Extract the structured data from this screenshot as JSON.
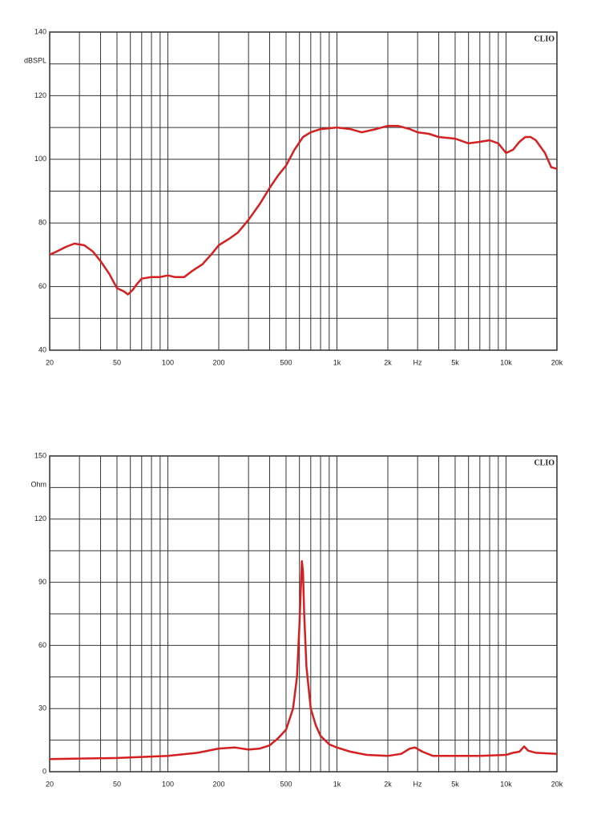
{
  "chart_data": [
    {
      "type": "line",
      "ylabel": "dBSPL",
      "xlabel": "Hz",
      "annotation": "CLIO",
      "xscale": "log",
      "color": "#d42020",
      "xlim": [
        20,
        20000
      ],
      "ylim": [
        40,
        140
      ],
      "xticks": [
        20,
        50,
        100,
        200,
        500,
        {
          "value": 1000,
          "label": "1k"
        },
        {
          "value": 2000,
          "label": "2k"
        },
        {
          "value": 5000,
          "label": "5k"
        },
        {
          "value": 10000,
          "label": "10k"
        },
        {
          "value": 20000,
          "label": "20k"
        }
      ],
      "xminor": [
        30,
        40,
        60,
        70,
        80,
        90,
        300,
        400,
        600,
        700,
        800,
        900,
        3000,
        4000,
        6000,
        7000,
        8000,
        9000
      ],
      "yticks": [
        40,
        60,
        80,
        100,
        120,
        140
      ],
      "yminor": [
        50,
        70,
        90,
        110,
        130
      ],
      "x": [
        20,
        22,
        25,
        28,
        32,
        36,
        40,
        45,
        50,
        55,
        58,
        62,
        65,
        70,
        80,
        90,
        100,
        110,
        125,
        140,
        160,
        180,
        200,
        230,
        260,
        300,
        350,
        400,
        450,
        500,
        560,
        630,
        700,
        800,
        1000,
        1200,
        1400,
        1700,
        2000,
        2300,
        2700,
        3000,
        3500,
        4000,
        5000,
        6000,
        7000,
        8000,
        9000,
        10000,
        11000,
        12000,
        13000,
        14000,
        15000,
        17000,
        18500,
        20000
      ],
      "values": [
        70,
        71,
        72.5,
        73.5,
        73,
        71,
        68,
        64,
        59.5,
        58.5,
        57.5,
        59,
        60.5,
        62.5,
        63,
        63,
        63.5,
        63,
        63,
        65,
        67,
        70,
        73,
        75,
        77,
        81,
        86,
        91,
        95,
        98,
        103,
        107,
        108.5,
        109.5,
        110,
        109.5,
        108.5,
        109.5,
        110.5,
        110.5,
        109.5,
        108.5,
        108,
        107,
        106.5,
        105,
        105.5,
        106,
        105,
        102,
        103,
        105.5,
        107,
        107,
        106,
        102,
        97.5,
        97
      ]
    },
    {
      "type": "line",
      "ylabel": "Ohm",
      "xlabel": "Hz",
      "annotation": "CLIO",
      "xscale": "log",
      "color": "#d42020",
      "xlim": [
        20,
        20000
      ],
      "ylim": [
        0,
        150
      ],
      "xticks": [
        20,
        50,
        100,
        200,
        500,
        {
          "value": 1000,
          "label": "1k"
        },
        {
          "value": 2000,
          "label": "2k"
        },
        {
          "value": 5000,
          "label": "5k"
        },
        {
          "value": 10000,
          "label": "10k"
        },
        {
          "value": 20000,
          "label": "20k"
        }
      ],
      "xminor": [
        30,
        40,
        60,
        70,
        80,
        90,
        300,
        400,
        600,
        700,
        800,
        900,
        3000,
        4000,
        6000,
        7000,
        8000,
        9000
      ],
      "yticks": [
        0,
        30,
        60,
        90,
        120,
        150
      ],
      "yminor": [
        15,
        45,
        75,
        105,
        135
      ],
      "x": [
        20,
        50,
        100,
        150,
        200,
        250,
        300,
        350,
        400,
        450,
        500,
        550,
        580,
        600,
        610,
        620,
        630,
        640,
        660,
        700,
        750,
        800,
        900,
        1000,
        1200,
        1500,
        2000,
        2400,
        2700,
        2900,
        3200,
        3700,
        5000,
        7000,
        10000,
        11000,
        12000,
        12800,
        13500,
        15000,
        20000
      ],
      "values": [
        6,
        6.5,
        7.5,
        9,
        11,
        11.5,
        10.5,
        11,
        12.5,
        16,
        20,
        30,
        45,
        70,
        85,
        100,
        95,
        75,
        50,
        30,
        22,
        17,
        13,
        11.5,
        9.5,
        8,
        7.5,
        8.5,
        11,
        11.5,
        9.5,
        7.5,
        7.5,
        7.5,
        8,
        9,
        9.5,
        12,
        10,
        9,
        8.5
      ]
    }
  ]
}
